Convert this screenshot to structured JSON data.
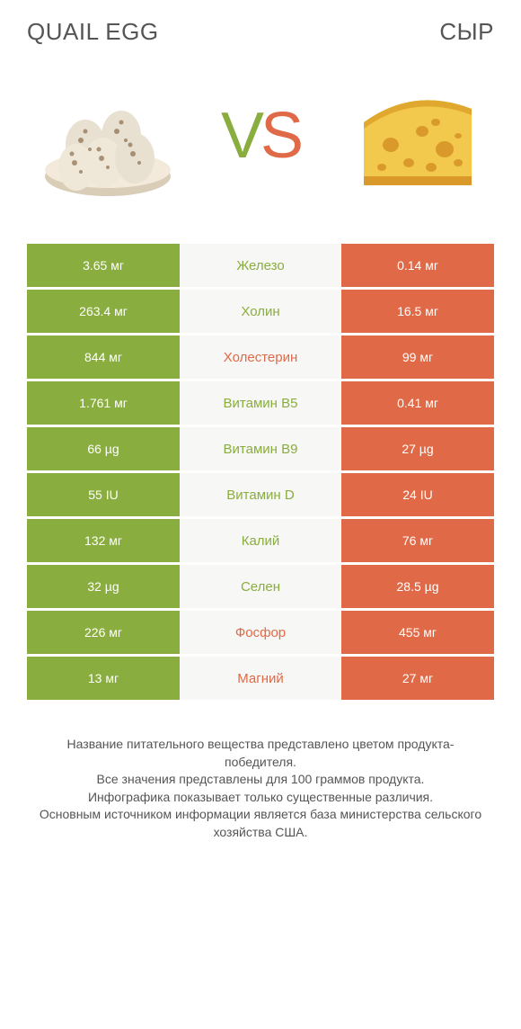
{
  "left_title": "Quail egg",
  "right_title": "Сыр",
  "vs_v": "V",
  "vs_s": "S",
  "colors": {
    "left": "#8aad3f",
    "right": "#e06a47",
    "mid_bg": "#f7f7f5",
    "mid_text_left": "#8aad3f",
    "mid_text_right": "#e06a47"
  },
  "rows": [
    {
      "label": "Железо",
      "left": "3.65 мг",
      "right": "0.14 мг",
      "winner": "left"
    },
    {
      "label": "Холин",
      "left": "263.4 мг",
      "right": "16.5 мг",
      "winner": "left"
    },
    {
      "label": "Холестерин",
      "left": "844 мг",
      "right": "99 мг",
      "winner": "right"
    },
    {
      "label": "Витамин B5",
      "left": "1.761 мг",
      "right": "0.41 мг",
      "winner": "left"
    },
    {
      "label": "Витамин B9",
      "left": "66 µg",
      "right": "27 µg",
      "winner": "left"
    },
    {
      "label": "Витамин D",
      "left": "55 IU",
      "right": "24 IU",
      "winner": "left"
    },
    {
      "label": "Калий",
      "left": "132 мг",
      "right": "76 мг",
      "winner": "left"
    },
    {
      "label": "Селен",
      "left": "32 µg",
      "right": "28.5 µg",
      "winner": "left"
    },
    {
      "label": "Фосфор",
      "left": "226 мг",
      "right": "455 мг",
      "winner": "right"
    },
    {
      "label": "Магний",
      "left": "13 мг",
      "right": "27 мг",
      "winner": "right"
    }
  ],
  "footer_lines": [
    "Название питательного вещества представлено цветом продукта-победителя.",
    "Все значения представлены для 100 граммов продукта.",
    "Инфографика показывает только существенные различия.",
    "Основным источником информации является база министерства сельского хозяйства США."
  ]
}
